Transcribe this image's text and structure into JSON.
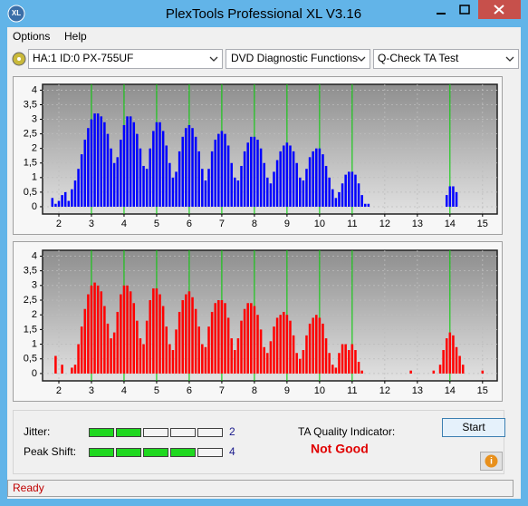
{
  "window": {
    "title": "PlexTools Professional XL V3.16"
  },
  "menu": [
    "Options",
    "Help"
  ],
  "selectors": [
    "HA:1 ID:0  PX-755UF",
    "DVD Diagnostic Functions",
    "Q-Check TA Test"
  ],
  "chart_data": [
    {
      "type": "bar",
      "color": "#0000ff",
      "grid": true,
      "xlim": [
        1.5,
        15.45
      ],
      "ylim": [
        -0.25,
        4.2
      ],
      "xticks": [
        2,
        3,
        4,
        5,
        6,
        7,
        8,
        9,
        10,
        11,
        12,
        13,
        14,
        15
      ],
      "yticks": [
        0,
        {
          "value": 0.5,
          "label": "0,5"
        },
        1,
        {
          "value": 1.5,
          "label": "1,5"
        },
        2,
        {
          "value": 2.5,
          "label": "2,5"
        },
        3,
        {
          "value": 3.5,
          "label": "3,5"
        },
        4
      ],
      "reference_x": [
        3,
        4,
        5,
        6,
        7,
        8,
        9,
        10,
        11,
        14
      ],
      "reference_color": "#00cc00",
      "x": [
        1.8,
        1.9,
        2.0,
        2.1,
        2.2,
        2.3,
        2.4,
        2.5,
        2.6,
        2.7,
        2.8,
        2.9,
        3.0,
        3.1,
        3.2,
        3.3,
        3.4,
        3.5,
        3.6,
        3.7,
        3.8,
        3.9,
        4.0,
        4.1,
        4.2,
        4.3,
        4.4,
        4.5,
        4.6,
        4.7,
        4.8,
        4.9,
        5.0,
        5.1,
        5.2,
        5.3,
        5.4,
        5.5,
        5.6,
        5.7,
        5.8,
        5.9,
        6.0,
        6.1,
        6.2,
        6.3,
        6.4,
        6.5,
        6.6,
        6.7,
        6.8,
        6.9,
        7.0,
        7.1,
        7.2,
        7.3,
        7.4,
        7.5,
        7.6,
        7.7,
        7.8,
        7.9,
        8.0,
        8.1,
        8.2,
        8.3,
        8.4,
        8.5,
        8.6,
        8.7,
        8.8,
        8.9,
        9.0,
        9.1,
        9.2,
        9.3,
        9.4,
        9.5,
        9.6,
        9.7,
        9.8,
        9.9,
        10.0,
        10.1,
        10.2,
        10.3,
        10.4,
        10.5,
        10.6,
        10.7,
        10.8,
        10.9,
        11.0,
        11.1,
        11.2,
        11.3,
        11.4,
        11.5,
        13.9,
        14.0,
        14.1,
        14.2
      ],
      "values": [
        0.3,
        0.1,
        0.2,
        0.4,
        0.5,
        0.2,
        0.6,
        0.9,
        1.3,
        1.8,
        2.3,
        2.7,
        3.0,
        3.2,
        3.2,
        3.1,
        2.9,
        2.5,
        2.0,
        1.5,
        1.7,
        2.3,
        2.8,
        3.1,
        3.1,
        2.9,
        2.5,
        2.0,
        1.4,
        1.3,
        2.0,
        2.6,
        2.9,
        2.9,
        2.6,
        2.1,
        1.5,
        1.0,
        1.2,
        1.9,
        2.4,
        2.7,
        2.8,
        2.7,
        2.4,
        1.9,
        1.3,
        0.9,
        1.3,
        1.9,
        2.3,
        2.5,
        2.6,
        2.5,
        2.1,
        1.5,
        1.0,
        0.9,
        1.4,
        1.9,
        2.2,
        2.4,
        2.4,
        2.3,
        2.0,
        1.5,
        1.0,
        0.8,
        1.2,
        1.6,
        1.9,
        2.1,
        2.2,
        2.1,
        1.9,
        1.5,
        1.0,
        0.9,
        1.3,
        1.7,
        1.9,
        2.0,
        2.0,
        1.8,
        1.4,
        1.0,
        0.6,
        0.3,
        0.5,
        0.8,
        1.1,
        1.2,
        1.2,
        1.1,
        0.8,
        0.4,
        0.1,
        0.1,
        0.4,
        0.7,
        0.7,
        0.5
      ]
    },
    {
      "type": "bar",
      "color": "#ff0000",
      "grid": true,
      "xlim": [
        1.5,
        15.45
      ],
      "ylim": [
        -0.25,
        4.2
      ],
      "xticks": [
        2,
        3,
        4,
        5,
        6,
        7,
        8,
        9,
        10,
        11,
        12,
        13,
        14,
        15
      ],
      "yticks": [
        0,
        {
          "value": 0.5,
          "label": "0,5"
        },
        1,
        {
          "value": 1.5,
          "label": "1,5"
        },
        2,
        {
          "value": 2.5,
          "label": "2,5"
        },
        3,
        {
          "value": 3.5,
          "label": "3,5"
        },
        4
      ],
      "reference_x": [
        3,
        4,
        5,
        6,
        7,
        8,
        9,
        10,
        11,
        14
      ],
      "reference_color": "#00cc00",
      "x": [
        1.9,
        2.1,
        2.4,
        2.5,
        2.6,
        2.7,
        2.8,
        2.9,
        3.0,
        3.1,
        3.2,
        3.3,
        3.4,
        3.5,
        3.6,
        3.7,
        3.8,
        3.9,
        4.0,
        4.1,
        4.2,
        4.3,
        4.4,
        4.5,
        4.6,
        4.7,
        4.8,
        4.9,
        5.0,
        5.1,
        5.2,
        5.3,
        5.4,
        5.5,
        5.6,
        5.7,
        5.8,
        5.9,
        6.0,
        6.1,
        6.2,
        6.3,
        6.4,
        6.5,
        6.6,
        6.7,
        6.8,
        6.9,
        7.0,
        7.1,
        7.2,
        7.3,
        7.4,
        7.5,
        7.6,
        7.7,
        7.8,
        7.9,
        8.0,
        8.1,
        8.2,
        8.3,
        8.4,
        8.5,
        8.6,
        8.7,
        8.8,
        8.9,
        9.0,
        9.1,
        9.2,
        9.3,
        9.4,
        9.5,
        9.6,
        9.7,
        9.8,
        9.9,
        10.0,
        10.1,
        10.2,
        10.3,
        10.4,
        10.5,
        10.6,
        10.7,
        10.8,
        10.9,
        11.0,
        11.1,
        11.2,
        11.3,
        12.8,
        13.5,
        13.7,
        13.8,
        13.9,
        14.0,
        14.1,
        14.2,
        14.3,
        14.4,
        15.0
      ],
      "values": [
        0.6,
        0.3,
        0.2,
        0.3,
        1.0,
        1.6,
        2.2,
        2.7,
        3.0,
        3.1,
        3.0,
        2.8,
        2.3,
        1.7,
        1.2,
        1.4,
        2.1,
        2.7,
        3.0,
        3.0,
        2.8,
        2.4,
        1.8,
        1.2,
        1.0,
        1.8,
        2.5,
        2.9,
        2.9,
        2.7,
        2.3,
        1.6,
        1.0,
        0.8,
        1.5,
        2.1,
        2.5,
        2.7,
        2.8,
        2.6,
        2.2,
        1.6,
        1.0,
        0.9,
        1.6,
        2.1,
        2.4,
        2.5,
        2.5,
        2.4,
        1.9,
        1.2,
        0.8,
        1.2,
        1.8,
        2.2,
        2.4,
        2.4,
        2.3,
        2.0,
        1.5,
        0.9,
        0.7,
        1.1,
        1.6,
        1.9,
        2.0,
        2.1,
        2.0,
        1.8,
        1.3,
        0.7,
        0.5,
        0.8,
        1.3,
        1.7,
        1.9,
        2.0,
        1.9,
        1.7,
        1.2,
        0.7,
        0.3,
        0.2,
        0.7,
        1.0,
        1.0,
        0.8,
        1.0,
        0.8,
        0.4,
        0.1,
        0.1,
        0.1,
        0.3,
        0.8,
        1.2,
        1.4,
        1.3,
        0.9,
        0.6,
        0.3,
        0.1
      ]
    }
  ],
  "results": {
    "jitter_label": "Jitter:",
    "jitter": 2,
    "peak_shift_label": "Peak Shift:",
    "peak_shift": 4,
    "quality_label": "TA Quality Indicator:",
    "quality": "Not Good"
  },
  "buttons": {
    "start": "Start"
  },
  "status": "Ready"
}
